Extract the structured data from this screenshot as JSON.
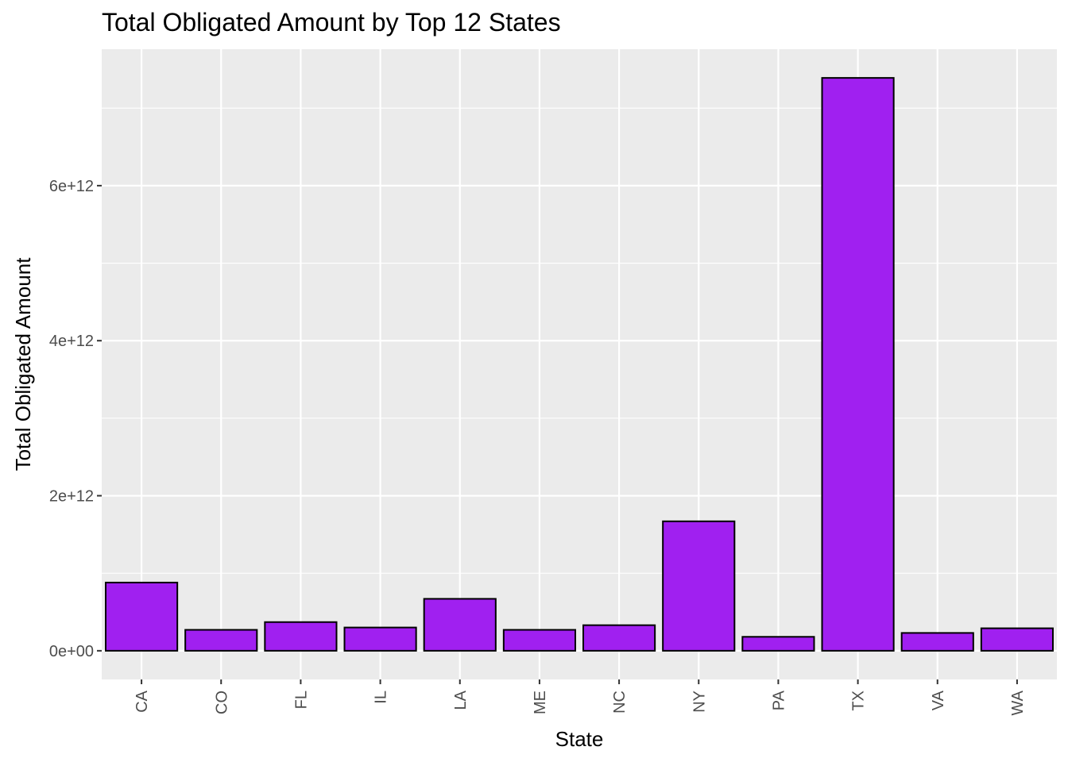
{
  "chart_data": {
    "type": "bar",
    "title": "Total Obligated Amount by Top 12 States",
    "xlabel": "State",
    "ylabel": "Total Obligated Amount",
    "categories": [
      "CA",
      "CO",
      "FL",
      "IL",
      "LA",
      "ME",
      "NC",
      "NY",
      "PA",
      "TX",
      "VA",
      "WA"
    ],
    "values": [
      880000000000.0,
      270000000000.0,
      370000000000.0,
      300000000000.0,
      670000000000.0,
      270000000000.0,
      330000000000.0,
      1670000000000.0,
      180000000000.0,
      7390000000000.0,
      230000000000.0,
      290000000000.0
    ],
    "yticks": [
      0,
      2000000000000.0,
      4000000000000.0,
      6000000000000.0
    ],
    "ytick_labels": [
      "0e+00",
      "2e+12",
      "4e+12",
      "6e+12"
    ],
    "ylim": [
      -370000000000.0,
      7760000000000.0
    ],
    "grid": true,
    "colors": {
      "bar_fill": "#A020F0",
      "bar_stroke": "#000000",
      "panel_bg": "#EBEBEB",
      "grid": "#FFFFFF"
    }
  }
}
